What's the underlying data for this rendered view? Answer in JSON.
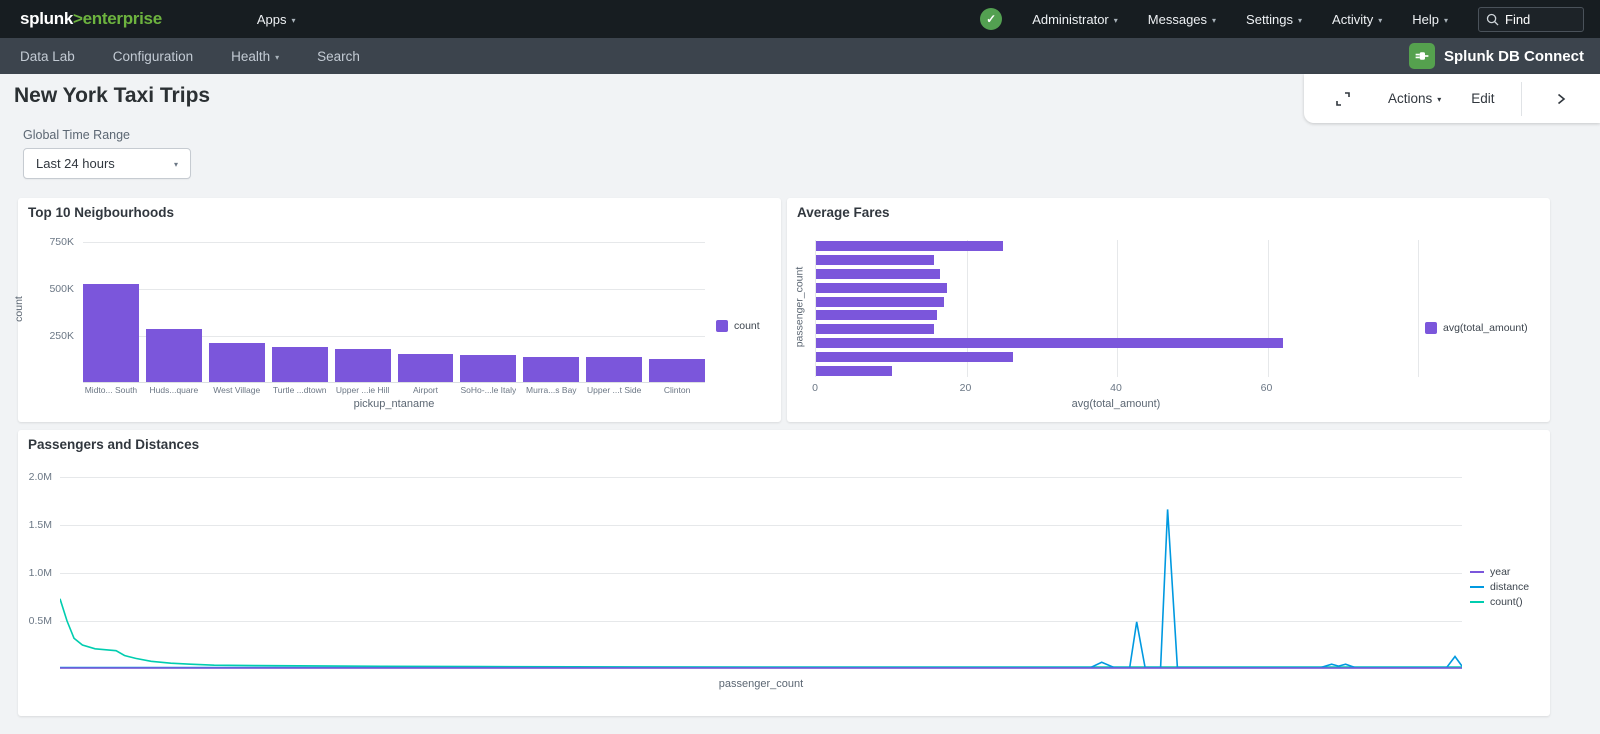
{
  "topnav": {
    "logo": {
      "brand": "splunk",
      "gt": ">",
      "product": "enterprise"
    },
    "apps_label": "Apps",
    "menus": [
      "Administrator",
      "Messages",
      "Settings",
      "Activity",
      "Help"
    ],
    "find_placeholder": "Find",
    "status_icon": "health-check-icon"
  },
  "appnav": {
    "items": [
      {
        "label": "Data Lab",
        "has_caret": false
      },
      {
        "label": "Configuration",
        "has_caret": false
      },
      {
        "label": "Health",
        "has_caret": true
      },
      {
        "label": "Search",
        "has_caret": false
      }
    ],
    "app_name": "Splunk DB Connect",
    "app_icon": "db-connect-plug-icon",
    "app_icon_color": "#55a14e"
  },
  "toolbar": {
    "expand_icon": "fullscreen-icon",
    "actions_label": "Actions",
    "edit_label": "Edit",
    "chevron_icon": "chevron-right-icon"
  },
  "page": {
    "title": "New York Taxi Trips",
    "time_range_label": "Global Time Range",
    "time_range_value": "Last 24 hours"
  },
  "colors": {
    "purple": "#7b56db",
    "blue": "#0099e0",
    "teal": "#00cdaf",
    "health_green": "#53a051",
    "topnav_bg": "#171d21",
    "appnav_bg": "#3c444d",
    "page_bg": "#f1f3f5"
  },
  "chart_data": [
    {
      "type": "bar",
      "title": "Top 10 Neigbourhoods",
      "xlabel": "pickup_ntaname",
      "ylabel": "count",
      "categories": [
        "Midto... South",
        "Huds...quare",
        "West Village",
        "Turtle ...dtown",
        "Upper ...ie Hill",
        "Airport",
        "SoHo-...le Italy",
        "Murra...s Bay",
        "Upper ...t Side",
        "Clinton"
      ],
      "series": [
        {
          "name": "count",
          "color": "#7b56db",
          "values": [
            520000,
            281000,
            206000,
            188000,
            178000,
            147000,
            141000,
            133000,
            131000,
            122000
          ]
        }
      ],
      "yticks": [
        {
          "label": "250K",
          "value": 250000
        },
        {
          "label": "500K",
          "value": 500000
        },
        {
          "label": "750K",
          "value": 750000
        }
      ],
      "ymax": 771000,
      "grid": "horizontal",
      "legend_position": "right"
    },
    {
      "type": "hbar",
      "title": "Average Fares",
      "xlabel": "avg(total_amount)",
      "ylabel": "passenger_count",
      "categories_visible": false,
      "series": [
        {
          "name": "avg(total_amount)",
          "color": "#7b56db",
          "values": [
            24.9,
            15.7,
            16.5,
            17.4,
            17.0,
            16.1,
            15.7,
            62.2,
            26.2,
            10.1
          ]
        }
      ],
      "xticks": [
        {
          "label": "0",
          "value": 0
        },
        {
          "label": "20",
          "value": 20
        },
        {
          "label": "40",
          "value": 40
        },
        {
          "label": "60",
          "value": 60
        }
      ],
      "gridline_values": [
        20,
        40,
        60,
        80
      ],
      "xmax": 80,
      "grid": "vertical",
      "legend_position": "right"
    },
    {
      "type": "line",
      "title": "Passengers and Distances",
      "xlabel": "passenger_count",
      "ylabel": "",
      "x_axis_tick_labels_visible": false,
      "x_unit": "percent_of_plot_width",
      "y_unit": "millions",
      "ymax_millions": 2.07,
      "yticks": [
        {
          "label": "0.5M",
          "value": 0.5
        },
        {
          "label": "1.0M",
          "value": 1.0
        },
        {
          "label": "1.5M",
          "value": 1.5
        },
        {
          "label": "2.0M",
          "value": 2.0
        }
      ],
      "series": [
        {
          "name": "year",
          "color": "#7b56db",
          "points": [
            [
              0,
              0.01
            ],
            [
              100,
              0.01
            ]
          ]
        },
        {
          "name": "distance",
          "color": "#0099e0",
          "points": [
            [
              0,
              0.015
            ],
            [
              40,
              0.015
            ],
            [
              70,
              0.015
            ],
            [
              73.5,
              0.015
            ],
            [
              74.3,
              0.07
            ],
            [
              75.2,
              0.015
            ],
            [
              76.3,
              0.015
            ],
            [
              76.8,
              0.49
            ],
            [
              77.4,
              0.015
            ],
            [
              78.5,
              0.015
            ],
            [
              79.0,
              1.66
            ],
            [
              79.7,
              0.015
            ],
            [
              89.9,
              0.015
            ],
            [
              90.7,
              0.05
            ],
            [
              91.2,
              0.03
            ],
            [
              91.7,
              0.05
            ],
            [
              92.4,
              0.015
            ],
            [
              98.9,
              0.015
            ],
            [
              99.5,
              0.13
            ],
            [
              100,
              0.03
            ]
          ]
        },
        {
          "name": "count()",
          "color": "#00cdaf",
          "points": [
            [
              0,
              0.73
            ],
            [
              0.5,
              0.5
            ],
            [
              1,
              0.32
            ],
            [
              1.6,
              0.25
            ],
            [
              2.5,
              0.21
            ],
            [
              3.3,
              0.2
            ],
            [
              4,
              0.19
            ],
            [
              4.6,
              0.14
            ],
            [
              5.4,
              0.11
            ],
            [
              6.5,
              0.08
            ],
            [
              7.9,
              0.06
            ],
            [
              9.3,
              0.05
            ],
            [
              11,
              0.04
            ],
            [
              14,
              0.035
            ],
            [
              20,
              0.03
            ],
            [
              30,
              0.025
            ],
            [
              50,
              0.02
            ],
            [
              100,
              0.02
            ]
          ]
        }
      ],
      "grid": "horizontal",
      "legend_position": "right"
    }
  ]
}
